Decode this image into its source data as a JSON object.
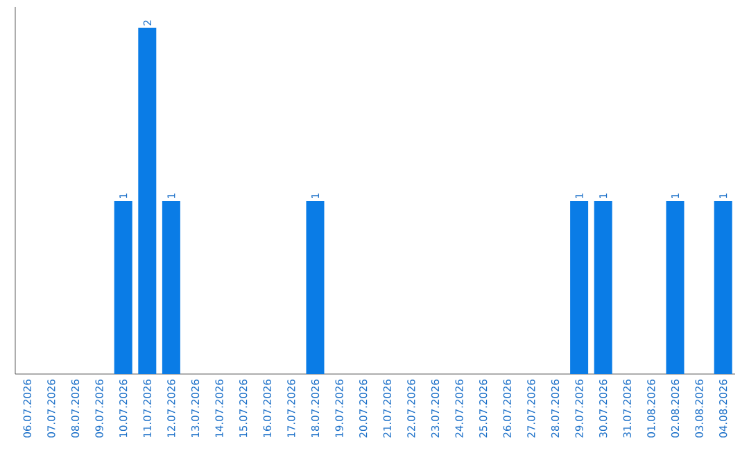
{
  "chart_data": {
    "type": "bar",
    "categories": [
      "06.07.2026",
      "07.07.2026",
      "08.07.2026",
      "09.07.2026",
      "10.07.2026",
      "11.07.2026",
      "12.07.2026",
      "13.07.2026",
      "14.07.2026",
      "15.07.2026",
      "16.07.2026",
      "17.07.2026",
      "18.07.2026",
      "19.07.2026",
      "20.07.2026",
      "21.07.2026",
      "22.07.2026",
      "23.07.2026",
      "24.07.2026",
      "25.07.2026",
      "26.07.2026",
      "27.07.2026",
      "28.07.2026",
      "29.07.2026",
      "30.07.2026",
      "31.07.2026",
      "01.08.2026",
      "02.08.2026",
      "03.08.2026",
      "04.08.2026"
    ],
    "values": [
      0,
      0,
      0,
      0,
      1,
      2,
      1,
      0,
      0,
      0,
      0,
      0,
      1,
      0,
      0,
      0,
      0,
      0,
      0,
      0,
      0,
      0,
      0,
      1,
      1,
      0,
      0,
      1,
      0,
      1
    ],
    "value_labels": [
      null,
      null,
      null,
      null,
      "1",
      "2",
      "1",
      null,
      null,
      null,
      null,
      null,
      "1",
      null,
      null,
      null,
      null,
      null,
      null,
      null,
      null,
      null,
      null,
      "1",
      "1",
      null,
      null,
      "1",
      null,
      "1"
    ],
    "color": "#0a7ce6",
    "ylim": [
      0,
      2.12
    ],
    "tick_labels": "x"
  }
}
